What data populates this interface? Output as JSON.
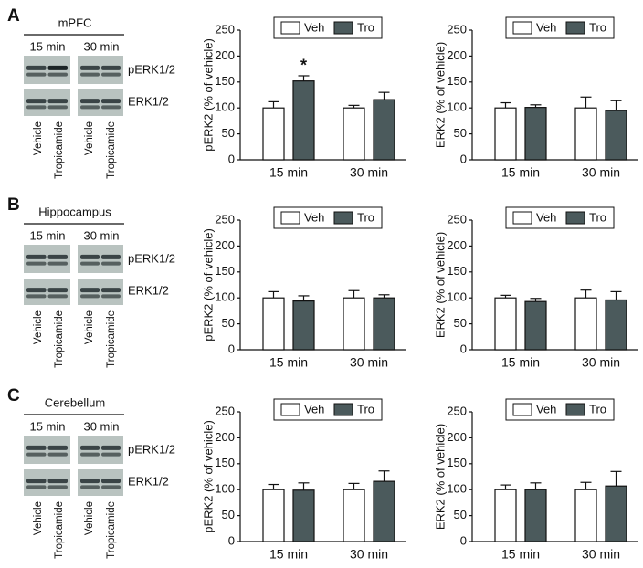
{
  "panels": [
    {
      "letter": "A",
      "region": "mPFC",
      "times": [
        "15 min",
        "30 min"
      ],
      "bands": [
        "pERK1/2",
        "ERK1/2"
      ],
      "lanes": [
        "Vehicle",
        "Tropicamide",
        "Vehicle",
        "Tropicamide"
      ]
    },
    {
      "letter": "B",
      "region": "Hippocampus",
      "times": [
        "15 min",
        "30 min"
      ],
      "bands": [
        "pERK1/2",
        "ERK1/2"
      ],
      "lanes": [
        "Vehicle",
        "Tropicamide",
        "Vehicle",
        "Tropicamide"
      ]
    },
    {
      "letter": "C",
      "region": "Cerebellum",
      "times": [
        "15 min",
        "30 min"
      ],
      "bands": [
        "pERK1/2",
        "ERK1/2"
      ],
      "lanes": [
        "Vehicle",
        "Tropicamide",
        "Vehicle",
        "Tropicamide"
      ]
    }
  ],
  "chart_data": [
    {
      "type": "bar",
      "ylabel": "pERK2 (% of vehicle)",
      "categories": [
        "15 min",
        "30 min"
      ],
      "annotation": "*",
      "series": [
        {
          "name": "Veh",
          "color": "#ffffff",
          "values": [
            100,
            100
          ],
          "errors": [
            12,
            5
          ]
        },
        {
          "name": "Tro",
          "color": "#4b5a5c",
          "values": [
            152,
            116
          ],
          "errors": [
            10,
            14
          ]
        }
      ],
      "ylim": [
        0,
        250
      ],
      "yticks": [
        0,
        50,
        100,
        150,
        200,
        250
      ]
    },
    {
      "type": "bar",
      "ylabel": "ERK2 (% of vehicle)",
      "categories": [
        "15 min",
        "30 min"
      ],
      "series": [
        {
          "name": "Veh",
          "color": "#ffffff",
          "values": [
            100,
            100
          ],
          "errors": [
            10,
            21
          ]
        },
        {
          "name": "Tro",
          "color": "#4b5a5c",
          "values": [
            101,
            95
          ],
          "errors": [
            5,
            19
          ]
        }
      ],
      "ylim": [
        0,
        250
      ],
      "yticks": [
        0,
        50,
        100,
        150,
        200,
        250
      ]
    },
    {
      "type": "bar",
      "ylabel": "pERK2 (% of vehicle)",
      "categories": [
        "15 min",
        "30 min"
      ],
      "series": [
        {
          "name": "Veh",
          "color": "#ffffff",
          "values": [
            100,
            100
          ],
          "errors": [
            12,
            14
          ]
        },
        {
          "name": "Tro",
          "color": "#4b5a5c",
          "values": [
            94,
            100
          ],
          "errors": [
            10,
            6
          ]
        }
      ],
      "ylim": [
        0,
        250
      ],
      "yticks": [
        0,
        50,
        100,
        150,
        200,
        250
      ]
    },
    {
      "type": "bar",
      "ylabel": "ERK2 (% of vehicle)",
      "categories": [
        "15 min",
        "30 min"
      ],
      "series": [
        {
          "name": "Veh",
          "color": "#ffffff",
          "values": [
            100,
            100
          ],
          "errors": [
            5,
            15
          ]
        },
        {
          "name": "Tro",
          "color": "#4b5a5c",
          "values": [
            93,
            96
          ],
          "errors": [
            6,
            16
          ]
        }
      ],
      "ylim": [
        0,
        250
      ],
      "yticks": [
        0,
        50,
        100,
        150,
        200,
        250
      ]
    },
    {
      "type": "bar",
      "ylabel": "pERK2 (% of vehicle)",
      "categories": [
        "15 min",
        "30 min"
      ],
      "series": [
        {
          "name": "Veh",
          "color": "#ffffff",
          "values": [
            100,
            100
          ],
          "errors": [
            10,
            12
          ]
        },
        {
          "name": "Tro",
          "color": "#4b5a5c",
          "values": [
            99,
            116
          ],
          "errors": [
            14,
            20
          ]
        }
      ],
      "ylim": [
        0,
        250
      ],
      "yticks": [
        0,
        50,
        100,
        150,
        200,
        250
      ]
    },
    {
      "type": "bar",
      "ylabel": "ERK2 (% of vehicle)",
      "categories": [
        "15 min",
        "30 min"
      ],
      "series": [
        {
          "name": "Veh",
          "color": "#ffffff",
          "values": [
            100,
            100
          ],
          "errors": [
            9,
            14
          ]
        },
        {
          "name": "Tro",
          "color": "#4b5a5c",
          "values": [
            100,
            107
          ],
          "errors": [
            13,
            28
          ]
        }
      ],
      "ylim": [
        0,
        250
      ],
      "yticks": [
        0,
        50,
        100,
        150,
        200,
        250
      ]
    }
  ]
}
